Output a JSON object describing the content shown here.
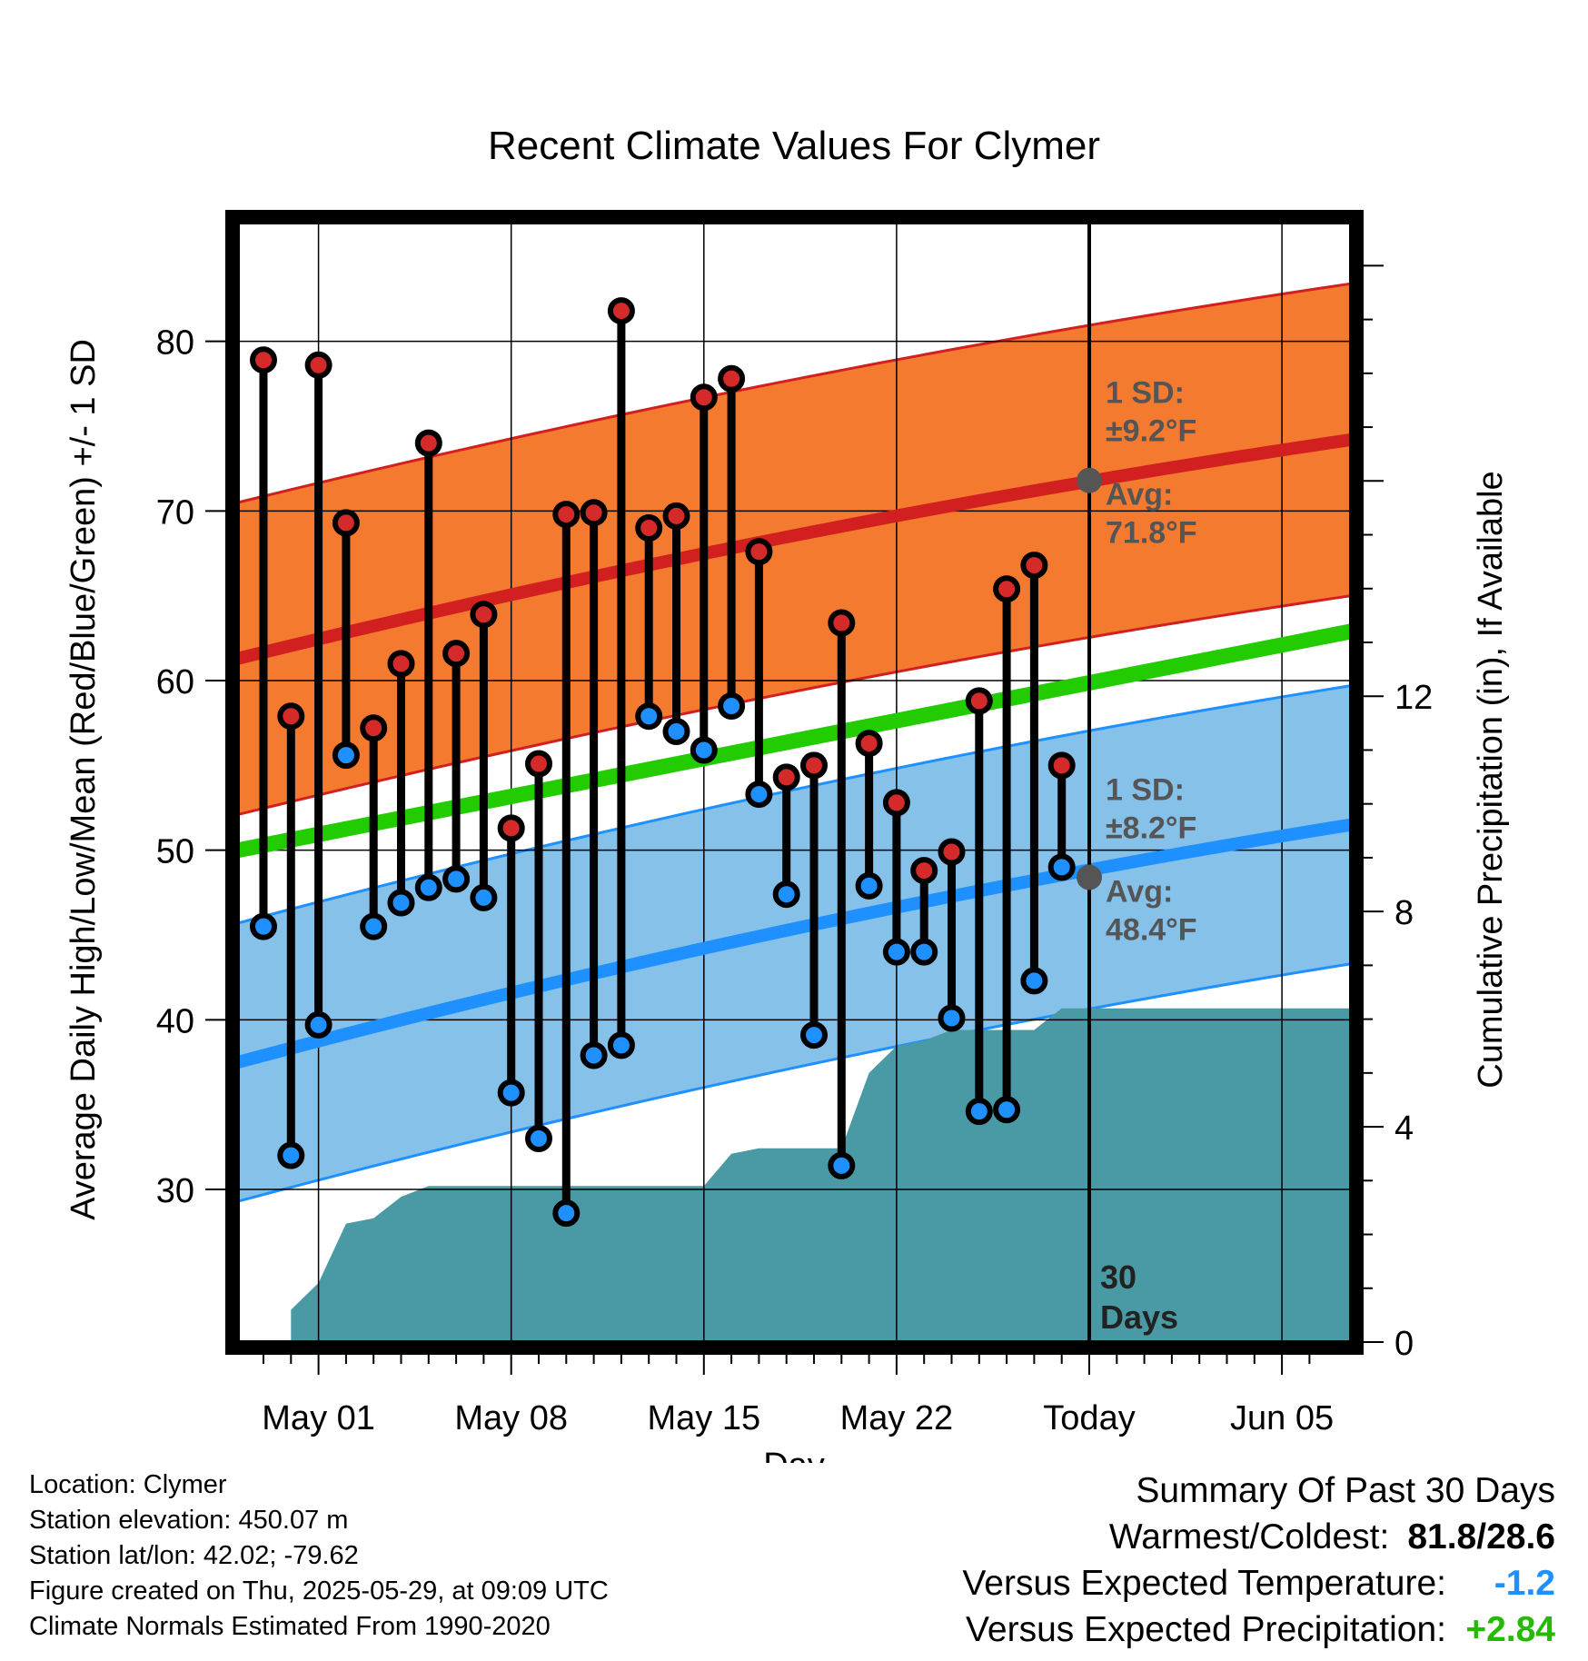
{
  "chart_data": {
    "type": "line",
    "title": "Recent Climate Values For Clymer",
    "xlabel": "Day",
    "ylabel": "Average Daily High/Low/Mean (Red/Blue/Green) +/- 1 SD",
    "y2label": "Cumulative Precipitation (in), If Available",
    "x_ticks": [
      "May 01",
      "May 08",
      "May 15",
      "May 22",
      "Today",
      "Jun 05"
    ],
    "ylim": [
      21,
      87
    ],
    "y_ticks": [
      30,
      40,
      50,
      60,
      70,
      80
    ],
    "y2lim": [
      0,
      20.8
    ],
    "y2_ticks": [
      0,
      4,
      8,
      12
    ],
    "days": [
      "Apr 29",
      "Apr 30",
      "May 01",
      "May 02",
      "May 03",
      "May 04",
      "May 05",
      "May 06",
      "May 07",
      "May 08",
      "May 09",
      "May 10",
      "May 11",
      "May 12",
      "May 13",
      "May 14",
      "May 15",
      "May 16",
      "May 17",
      "May 18",
      "May 19",
      "May 20",
      "May 21",
      "May 22",
      "May 23",
      "May 24",
      "May 25",
      "May 26",
      "May 27",
      "May 28"
    ],
    "highs": [
      78.9,
      57.9,
      78.6,
      69.3,
      57.2,
      61.0,
      74.0,
      61.6,
      63.9,
      51.3,
      55.1,
      69.8,
      69.9,
      81.8,
      69.0,
      69.7,
      76.7,
      77.8,
      67.6,
      54.3,
      55.0,
      63.4,
      56.3,
      52.8,
      48.8,
      49.9,
      58.8,
      65.4,
      66.8,
      55.0
    ],
    "lows": [
      45.5,
      32.0,
      39.7,
      55.6,
      45.5,
      46.9,
      47.8,
      48.3,
      47.2,
      35.7,
      33.0,
      28.6,
      37.9,
      38.5,
      57.9,
      57.0,
      55.9,
      58.5,
      53.3,
      47.4,
      39.1,
      31.4,
      47.9,
      44.0,
      44.0,
      40.1,
      34.6,
      34.7,
      42.3,
      49.0
    ],
    "normal_high": {
      "name": "Avg",
      "start": 61.3,
      "today": 71.8,
      "end": 74.2,
      "sd": 9.2,
      "label_sd": "1 SD:",
      "label_sd_value": "±9.2°F",
      "label_avg": "Avg:",
      "label_avg_value": "71.8°F"
    },
    "normal_low": {
      "name": "Avg",
      "start": 37.5,
      "today": 48.4,
      "end": 51.5,
      "sd": 8.2,
      "label_sd": "1 SD:",
      "label_sd_value": "±8.2°F",
      "label_avg": "Avg:",
      "label_avg_value": "48.4°F"
    },
    "normal_mean": {
      "start": 50.0,
      "end": 62.9
    },
    "precip_cumulative": [
      0.0,
      0.6,
      1.1,
      2.2,
      2.3,
      2.7,
      2.9,
      2.9,
      2.9,
      2.9,
      2.9,
      2.9,
      2.9,
      2.9,
      2.9,
      2.9,
      2.9,
      3.5,
      3.6,
      3.6,
      3.6,
      3.6,
      5.0,
      5.5,
      5.6,
      5.8,
      5.8,
      5.8,
      5.8,
      6.2,
      6.2
    ],
    "today_marker": {
      "label_line1": "30",
      "label_line2": "Days"
    },
    "colors": {
      "high_band": "#f47a30",
      "high_line": "#d22020",
      "low_band": "#85c1e8",
      "low_line": "#1e90ff",
      "mean_line": "#22cc00",
      "precip": "#4a9aa5",
      "high_dot": "#d42a2a",
      "low_dot": "#1e90ff",
      "avg_marker": "#555555"
    }
  },
  "footer_left": {
    "location": "Location: Clymer",
    "elevation": "Station elevation: 450.07 m",
    "latlon": "Station lat/lon: 42.02; -79.62",
    "created": "Figure created on Thu, 2025-05-29, at 09:09 UTC",
    "normals": "Climate Normals Estimated From 1990-2020"
  },
  "summary": {
    "title": "Summary Of Past 30 Days",
    "warm_cold_label": "Warmest/Coldest:",
    "warm_cold_value": "81.8/28.6",
    "temp_label": "Versus Expected Temperature:",
    "temp_value": "-1.2",
    "temp_color": "#1e90ff",
    "precip_label": "Versus Expected Precipitation:",
    "precip_value": "+2.84",
    "precip_color": "#22bb00"
  }
}
